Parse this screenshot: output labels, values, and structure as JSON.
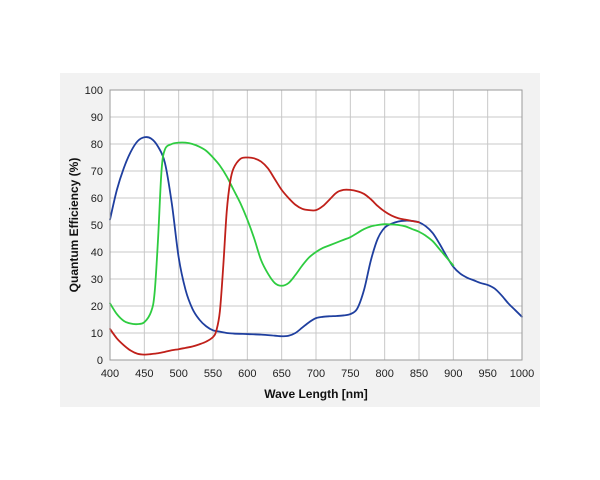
{
  "chart_data": {
    "type": "line",
    "title": "",
    "xlabel": "Wave Length [nm]",
    "ylabel": "Quantum Efficiency (%)",
    "xlim": [
      400,
      1000
    ],
    "ylim": [
      0,
      100
    ],
    "xticks": [
      400,
      450,
      500,
      550,
      600,
      650,
      700,
      750,
      800,
      850,
      900,
      950,
      1000
    ],
    "yticks": [
      0,
      10,
      20,
      30,
      40,
      50,
      60,
      70,
      80,
      90,
      100
    ],
    "grid": true,
    "legend": "none",
    "series": [
      {
        "color": "#1f3f9f",
        "x": [
          400,
          410,
          420,
          430,
          440,
          450,
          460,
          470,
          480,
          490,
          500,
          510,
          520,
          530,
          540,
          550,
          560,
          570,
          580,
          600,
          620,
          640,
          650,
          660,
          670,
          680,
          690,
          700,
          710,
          720,
          730,
          740,
          750,
          760,
          770,
          780,
          790,
          800,
          810,
          820,
          830,
          840,
          850,
          860,
          870,
          880,
          890,
          900,
          910,
          920,
          930,
          940,
          950,
          960,
          970,
          980,
          990,
          1000
        ],
        "y": [
          52,
          63,
          71,
          77,
          81,
          82.5,
          82,
          79,
          73,
          58,
          38,
          26,
          19,
          15,
          12.5,
          11,
          10.5,
          10,
          9.8,
          9.6,
          9.4,
          9,
          8.8,
          9,
          10,
          12,
          14,
          15.5,
          16,
          16.2,
          16.3,
          16.5,
          17,
          19,
          26,
          37,
          45,
          49,
          50.5,
          51.3,
          51.6,
          51.5,
          51,
          49.5,
          47,
          43,
          38.5,
          34.5,
          32,
          30.5,
          29.5,
          28.5,
          27.8,
          26.5,
          24,
          21,
          18.5,
          16
        ]
      },
      {
        "color": "#2ecc40",
        "x": [
          400,
          410,
          420,
          430,
          440,
          450,
          460,
          465,
          470,
          475,
          480,
          490,
          500,
          510,
          520,
          530,
          540,
          550,
          560,
          570,
          580,
          590,
          600,
          610,
          620,
          630,
          640,
          650,
          660,
          670,
          680,
          690,
          700,
          710,
          720,
          730,
          740,
          750,
          760,
          770,
          780,
          790,
          800,
          810,
          820,
          830,
          840,
          850,
          860,
          870,
          880,
          890,
          900
        ],
        "y": [
          21,
          17,
          14.5,
          13.5,
          13.3,
          14,
          18,
          25,
          45,
          70,
          78,
          80,
          80.5,
          80.5,
          80,
          79,
          77.5,
          75,
          72,
          68,
          63,
          58,
          52,
          45,
          37,
          32,
          28.5,
          27.5,
          28.5,
          31.5,
          35,
          38,
          40,
          41.5,
          42.5,
          43.5,
          44.5,
          45.5,
          47,
          48.5,
          49.5,
          50,
          50.3,
          50.2,
          50,
          49.5,
          48.5,
          47.5,
          46,
          44,
          41,
          38,
          35
        ]
      },
      {
        "color": "#c0201a",
        "x": [
          400,
          410,
          420,
          430,
          440,
          450,
          460,
          470,
          480,
          490,
          500,
          510,
          520,
          530,
          540,
          550,
          555,
          560,
          565,
          570,
          575,
          580,
          590,
          600,
          610,
          620,
          630,
          640,
          650,
          660,
          670,
          680,
          690,
          700,
          710,
          720,
          730,
          740,
          750,
          760,
          770,
          780,
          790,
          800,
          810,
          820,
          830,
          840,
          850
        ],
        "y": [
          11.5,
          8,
          5.5,
          3.5,
          2.3,
          2,
          2.2,
          2.5,
          3,
          3.6,
          4,
          4.5,
          5,
          5.8,
          6.8,
          8.5,
          11,
          18,
          35,
          55,
          66,
          71,
          74.5,
          75,
          74.7,
          73.5,
          71,
          67,
          63,
          60,
          57.5,
          56,
          55.5,
          55.5,
          57,
          59.5,
          62,
          63,
          63,
          62.5,
          61.5,
          59.5,
          57,
          55,
          53.5,
          52.5,
          52,
          51.5,
          51
        ]
      }
    ]
  }
}
